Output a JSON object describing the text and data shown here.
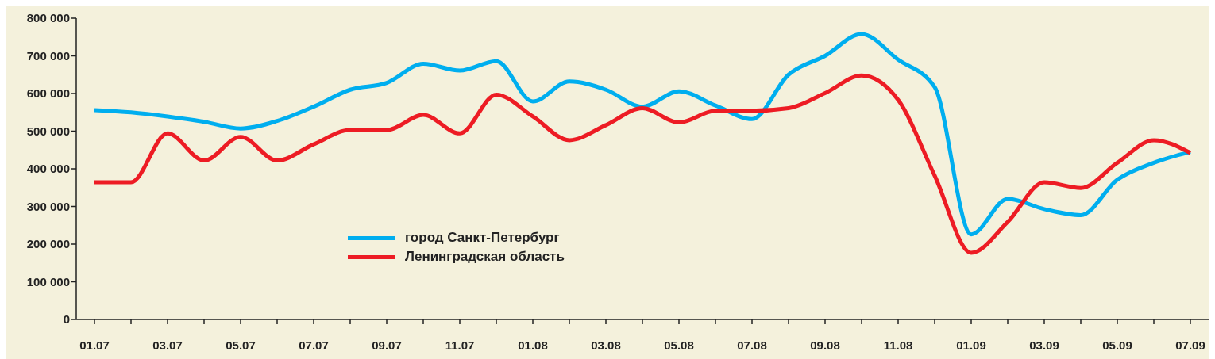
{
  "chart_data": {
    "type": "line",
    "categories": [
      "01.07",
      null,
      "03.07",
      null,
      "05.07",
      null,
      "07.07",
      null,
      "09.07",
      null,
      "11.07",
      null,
      "01.08",
      null,
      "03.08",
      null,
      "05.08",
      null,
      "07.08",
      null,
      "09.08",
      null,
      "11.08",
      null,
      "01.09",
      null,
      "03.09",
      null,
      "05.09",
      null,
      "07.09"
    ],
    "series": [
      {
        "name": "город Санкт-Петербург",
        "color": "#00aeef",
        "values": [
          556000,
          550000,
          539000,
          525000,
          507000,
          527000,
          565000,
          610000,
          628000,
          679000,
          661000,
          686000,
          579000,
          632000,
          610000,
          565000,
          606000,
          568000,
          532000,
          650000,
          700000,
          758000,
          690000,
          617000,
          226000,
          320000,
          293000,
          277000,
          371000,
          416000,
          445000
        ]
      },
      {
        "name": "Ленинградская область",
        "color": "#ed1c24",
        "values": [
          364000,
          364000,
          494000,
          422000,
          485000,
          422000,
          465000,
          503000,
          503000,
          543000,
          494000,
          597000,
          539000,
          476000,
          516000,
          561000,
          523000,
          554000,
          554000,
          561000,
          601000,
          648000,
          583000,
          382000,
          177000,
          259000,
          364000,
          349000,
          416000,
          476000,
          442000
        ]
      }
    ],
    "ylim": [
      0,
      800000
    ],
    "yticks": [
      {
        "value": 0,
        "label": "0"
      },
      {
        "value": 100000,
        "label": "100 000"
      },
      {
        "value": 200000,
        "label": "200 000"
      },
      {
        "value": 300000,
        "label": "300 000"
      },
      {
        "value": 400000,
        "label": "400 000"
      },
      {
        "value": 500000,
        "label": "500 000"
      },
      {
        "value": 600000,
        "label": "600 000"
      },
      {
        "value": 700000,
        "label": "700 000"
      },
      {
        "value": 800000,
        "label": "800 000"
      }
    ],
    "grid": false,
    "legend": "bottom left",
    "marker": "none",
    "line_style": "solid"
  }
}
